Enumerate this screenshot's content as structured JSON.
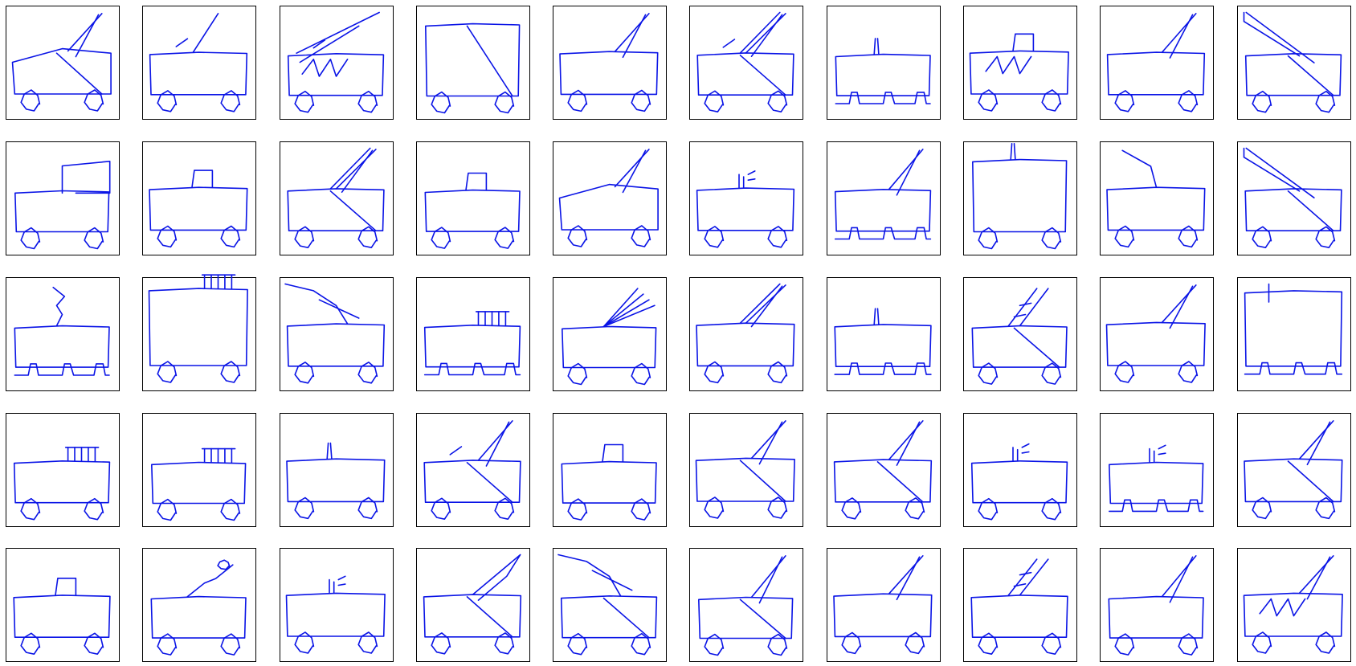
{
  "grid": {
    "rows": 5,
    "columns": 10,
    "subject": "bus-sketch-icon",
    "stroke_color": "#0a14e6",
    "frame_color": "#000000",
    "background": "#ffffff"
  },
  "sketches": [
    {
      "roof": "slanted",
      "wheels": "round",
      "pole": "double-diagonal",
      "diagonal": true,
      "rung": false,
      "zig": false
    },
    {
      "roof": "flat",
      "wheels": "round",
      "pole": "single-diagonal",
      "diagonal": false,
      "rung": true,
      "zig": false
    },
    {
      "roof": "flat",
      "wheels": "round",
      "pole": "long-diagonal",
      "diagonal": false,
      "rung": true,
      "zig": true
    },
    {
      "roof": "tall",
      "wheels": "round",
      "pole": "none",
      "diagonal": true,
      "rung": false,
      "zig": false
    },
    {
      "roof": "flat",
      "wheels": "round",
      "pole": "double-diagonal",
      "diagonal": false,
      "rung": false,
      "zig": false
    },
    {
      "roof": "flat",
      "wheels": "round",
      "pole": "triple-diagonal",
      "diagonal": true,
      "rung": true,
      "zig": false
    },
    {
      "roof": "flat",
      "wheels": "arches",
      "pole": "vertical",
      "diagonal": false,
      "rung": false,
      "zig": false
    },
    {
      "roof": "flat",
      "wheels": "round",
      "pole": "box",
      "diagonal": false,
      "rung": false,
      "zig": true
    },
    {
      "roof": "flat",
      "wheels": "round",
      "pole": "double-diagonal",
      "diagonal": false,
      "rung": false,
      "zig": false
    },
    {
      "roof": "flat",
      "wheels": "round",
      "pole": "back-diagonal",
      "diagonal": true,
      "rung": false,
      "zig": false
    },
    {
      "roof": "flat",
      "wheels": "round",
      "pole": "box-large",
      "diagonal": false,
      "rung": false,
      "zig": false
    },
    {
      "roof": "flat",
      "wheels": "round",
      "pole": "box",
      "diagonal": false,
      "rung": false,
      "zig": false
    },
    {
      "roof": "flat",
      "wheels": "round",
      "pole": "triple-diagonal",
      "diagonal": true,
      "rung": false,
      "zig": false
    },
    {
      "roof": "flat",
      "wheels": "round",
      "pole": "box",
      "diagonal": false,
      "rung": false,
      "zig": false
    },
    {
      "roof": "slanted",
      "wheels": "round",
      "pole": "double-diagonal",
      "diagonal": false,
      "rung": false,
      "zig": false
    },
    {
      "roof": "flat",
      "wheels": "round",
      "pole": "vertical-spark",
      "diagonal": false,
      "rung": false,
      "zig": false
    },
    {
      "roof": "flat",
      "wheels": "arches",
      "pole": "double-diagonal",
      "diagonal": false,
      "rung": false,
      "zig": false
    },
    {
      "roof": "tall",
      "wheels": "round",
      "pole": "vertical",
      "diagonal": false,
      "rung": false,
      "zig": false
    },
    {
      "roof": "flat",
      "wheels": "round",
      "pole": "bent",
      "diagonal": false,
      "rung": false,
      "zig": false
    },
    {
      "roof": "flat",
      "wheels": "round",
      "pole": "back-diagonal",
      "diagonal": true,
      "rung": false,
      "zig": false
    },
    {
      "roof": "flat",
      "wheels": "arches",
      "pole": "squiggle",
      "diagonal": false,
      "rung": false,
      "zig": false
    },
    {
      "roof": "tall",
      "wheels": "round",
      "pole": "rack",
      "diagonal": false,
      "rung": false,
      "zig": false
    },
    {
      "roof": "flat",
      "wheels": "round",
      "pole": "curved-back",
      "diagonal": false,
      "rung": false,
      "zig": false
    },
    {
      "roof": "flat",
      "wheels": "arches",
      "pole": "rack",
      "diagonal": false,
      "rung": false,
      "zig": false
    },
    {
      "roof": "flat",
      "wheels": "round",
      "pole": "fan",
      "diagonal": false,
      "rung": false,
      "zig": false
    },
    {
      "roof": "flat",
      "wheels": "round",
      "pole": "triple-diagonal",
      "diagonal": false,
      "rung": false,
      "zig": false
    },
    {
      "roof": "flat",
      "wheels": "arches",
      "pole": "vertical",
      "diagonal": false,
      "rung": false,
      "zig": false
    },
    {
      "roof": "flat",
      "wheels": "round",
      "pole": "ladder",
      "diagonal": true,
      "rung": false,
      "zig": false
    },
    {
      "roof": "flat",
      "wheels": "round",
      "pole": "double-diagonal",
      "diagonal": false,
      "rung": false,
      "zig": false
    },
    {
      "roof": "tall",
      "wheels": "arches",
      "pole": "vertical-tall",
      "diagonal": false,
      "rung": false,
      "zig": false
    },
    {
      "roof": "flat",
      "wheels": "round",
      "pole": "rack",
      "diagonal": false,
      "rung": false,
      "zig": false
    },
    {
      "roof": "flat",
      "wheels": "round",
      "pole": "rack",
      "diagonal": false,
      "rung": false,
      "zig": false
    },
    {
      "roof": "flat",
      "wheels": "round",
      "pole": "vertical",
      "diagonal": false,
      "rung": false,
      "zig": false
    },
    {
      "roof": "flat",
      "wheels": "round",
      "pole": "double-diagonal",
      "diagonal": true,
      "rung": true,
      "zig": false
    },
    {
      "roof": "flat",
      "wheels": "round",
      "pole": "box",
      "diagonal": false,
      "rung": false,
      "zig": false
    },
    {
      "roof": "flat",
      "wheels": "round",
      "pole": "double-diagonal",
      "diagonal": true,
      "rung": false,
      "zig": false
    },
    {
      "roof": "flat",
      "wheels": "round",
      "pole": "double-diagonal",
      "diagonal": true,
      "rung": false,
      "zig": false
    },
    {
      "roof": "flat",
      "wheels": "round",
      "pole": "vertical-spark",
      "diagonal": false,
      "rung": false,
      "zig": false
    },
    {
      "roof": "flat",
      "wheels": "arches",
      "pole": "vertical-spark",
      "diagonal": false,
      "rung": false,
      "zig": false
    },
    {
      "roof": "flat",
      "wheels": "round",
      "pole": "double-diagonal",
      "diagonal": true,
      "rung": false,
      "zig": false
    },
    {
      "roof": "flat",
      "wheels": "round",
      "pole": "box",
      "diagonal": false,
      "rung": false,
      "zig": false
    },
    {
      "roof": "flat",
      "wheels": "round",
      "pole": "squiggle-long",
      "diagonal": false,
      "rung": false,
      "zig": false
    },
    {
      "roof": "flat",
      "wheels": "round",
      "pole": "vertical-spark",
      "diagonal": false,
      "rung": false,
      "zig": false
    },
    {
      "roof": "flat",
      "wheels": "round",
      "pole": "wide-diagonal",
      "diagonal": true,
      "rung": false,
      "zig": false
    },
    {
      "roof": "flat",
      "wheels": "round",
      "pole": "curved-back",
      "diagonal": true,
      "rung": false,
      "zig": false
    },
    {
      "roof": "flat",
      "wheels": "round",
      "pole": "double-diagonal",
      "diagonal": true,
      "rung": false,
      "zig": false
    },
    {
      "roof": "flat",
      "wheels": "round",
      "pole": "double-diagonal",
      "diagonal": false,
      "rung": false,
      "zig": false
    },
    {
      "roof": "flat",
      "wheels": "round",
      "pole": "ladder",
      "diagonal": false,
      "rung": false,
      "zig": false
    },
    {
      "roof": "flat",
      "wheels": "round",
      "pole": "double-diagonal",
      "diagonal": false,
      "rung": false,
      "zig": false
    },
    {
      "roof": "flat",
      "wheels": "round",
      "pole": "double-diagonal",
      "diagonal": false,
      "rung": false,
      "zig": true
    }
  ]
}
